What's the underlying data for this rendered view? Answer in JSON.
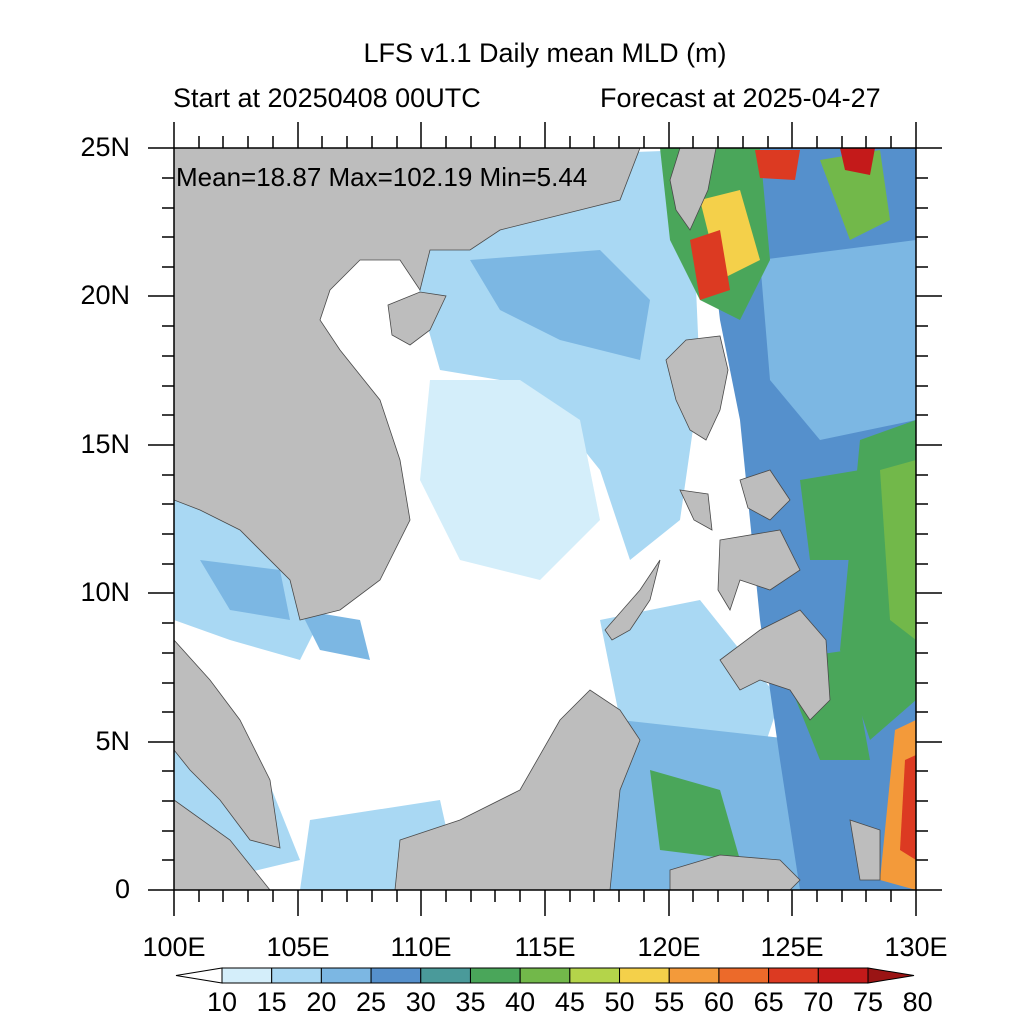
{
  "title": "LFS v1.1 Daily mean MLD (m)",
  "start_label": "Start at 20250408 00UTC",
  "forecast_label": "Forecast at 2025-04-27",
  "stats": "Mean=18.87  Max=102.19  Min=5.44",
  "lat_ticks": [
    "25N",
    "20N",
    "15N",
    "10N",
    "5N",
    "0"
  ],
  "lon_ticks": [
    "100E",
    "105E",
    "110E",
    "115E",
    "120E",
    "125E",
    "130E"
  ],
  "colorbar": {
    "labels": [
      "10",
      "15",
      "20",
      "25",
      "30",
      "35",
      "40",
      "45",
      "50",
      "55",
      "60",
      "65",
      "70",
      "75",
      "80"
    ],
    "colors": [
      "#ffffff",
      "#d4eefa",
      "#a9d8f3",
      "#7cb7e3",
      "#5590cc",
      "#4a9a9a",
      "#4aa65a",
      "#72b84a",
      "#b4d44a",
      "#f4d04a",
      "#f39a3a",
      "#ec6a2a",
      "#dc3a22",
      "#c41a1a",
      "#9a1414"
    ]
  },
  "colors": {
    "land": "#bdbdbd",
    "ocean_low": "#ffffff"
  }
}
